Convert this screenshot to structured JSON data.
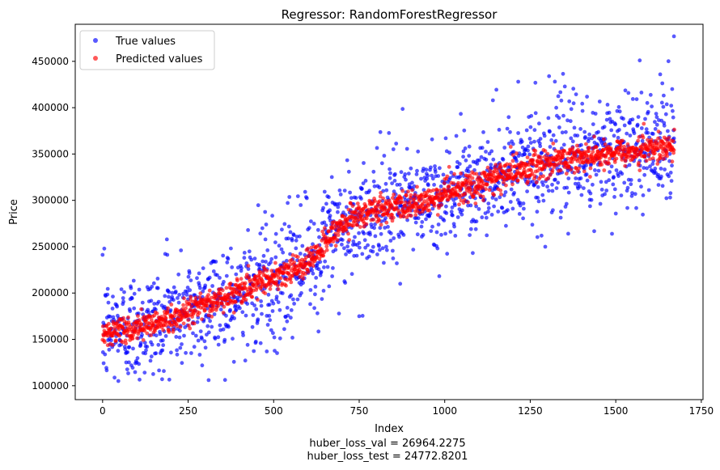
{
  "chart_data": {
    "type": "scatter",
    "title": "Regressor: RandomForestRegressor",
    "xlabel": "Index",
    "ylabel": "Price",
    "footer_lines": [
      "huber_loss_val = 26964.2275",
      "huber_loss_test = 24772.8201"
    ],
    "xlim": [
      -80,
      1755
    ],
    "ylim": [
      85000,
      490000
    ],
    "x_ticks": [
      0,
      250,
      500,
      750,
      1000,
      1250,
      1500,
      1750
    ],
    "x_tick_labels": [
      "0",
      "250",
      "500",
      "750",
      "1000",
      "1250",
      "1500",
      "1750"
    ],
    "y_ticks": [
      100000,
      150000,
      200000,
      250000,
      300000,
      350000,
      400000,
      450000
    ],
    "y_tick_labels": [
      "100000",
      "150000",
      "200000",
      "250000",
      "300000",
      "350000",
      "400000",
      "450000"
    ],
    "grid": false,
    "legend_position": "top-left",
    "n_points": 1672,
    "trend_anchors": {
      "x": [
        0,
        100,
        200,
        300,
        400,
        500,
        600,
        700,
        800,
        900,
        1000,
        1100,
        1200,
        1300,
        1400,
        1500,
        1600,
        1672
      ],
      "y": [
        158000,
        163000,
        172000,
        188000,
        202000,
        218000,
        232000,
        275000,
        290000,
        295000,
        305000,
        318000,
        330000,
        340000,
        347000,
        352000,
        355000,
        358000
      ]
    },
    "series": [
      {
        "name": "True values",
        "color": "#0000ff",
        "noise_sd": 30000,
        "outliers": [
          [
            5,
            248000
          ],
          [
            1670,
            477000
          ],
          [
            1570,
            451000
          ],
          [
            1630,
            436000
          ],
          [
            1305,
            434000
          ],
          [
            1215,
            428000
          ],
          [
            870,
            210000
          ],
          [
            480,
            137000
          ],
          [
            750,
            175000
          ],
          [
            310,
            106000
          ]
        ]
      },
      {
        "name": "Predicted values",
        "color": "#ff0000",
        "noise_sd": 7500,
        "outliers": []
      }
    ]
  }
}
